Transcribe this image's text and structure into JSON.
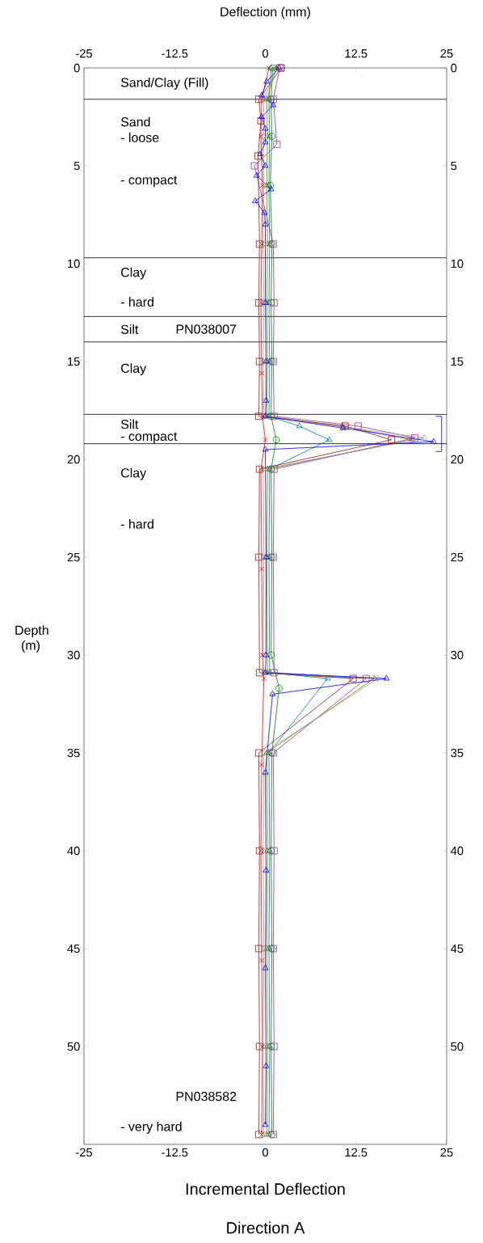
{
  "chart_data": {
    "type": "line",
    "title": "Incremental Deflection",
    "subtitle": "Direction  A",
    "x2label": "Deflection (mm)",
    "ylabel": "Depth (m)",
    "xlim": [
      -25,
      25
    ],
    "xticks": [
      -25,
      -12.5,
      0,
      12.5,
      25
    ],
    "x2lim": [
      -25,
      25
    ],
    "x2ticks": [
      -25,
      -12.5,
      0,
      12.5,
      25
    ],
    "ylim": [
      55,
      0
    ],
    "yticks": [
      0,
      5,
      10,
      15,
      20,
      25,
      30,
      35,
      40,
      45,
      50
    ],
    "y2lim": [
      55,
      0
    ],
    "y2ticks": [
      0,
      5,
      10,
      15,
      20,
      25,
      30,
      35,
      40,
      45,
      50
    ],
    "grid": false,
    "line_style": "solid",
    "ref_lines": [
      {
        "axis": "y",
        "value": 1.6,
        "label": null
      },
      {
        "axis": "y",
        "value": 9.7,
        "label": null
      },
      {
        "axis": "y",
        "value": 12.7,
        "label": null
      },
      {
        "axis": "y",
        "value": 14.0,
        "label": null
      },
      {
        "axis": "y",
        "value": 17.7,
        "label": null
      },
      {
        "axis": "y",
        "value": 19.2,
        "label": null
      }
    ],
    "annotations": [
      "Sand/Clay (Fill)",
      "Sand",
      "- loose",
      "- compact",
      "Clay",
      "- hard",
      "Silt",
      "PN038007",
      "Clay",
      "Silt",
      "- compact",
      "Clay",
      "- hard",
      "PN038582",
      "- very hard"
    ],
    "series": [
      {
        "color": "#ff0000",
        "marker": "cross",
        "x": [
          0.5,
          -0.5,
          -0.6,
          -0.4,
          -0.5,
          -0.6,
          -0.5,
          -0.4,
          0,
          -0.6,
          -0.5,
          -0.4,
          -0.2,
          -0.5,
          -0.6,
          -0.5,
          -0.4,
          -0.5
        ],
        "values": [
          0,
          1.6,
          3.5,
          6.0,
          9.0,
          12.0,
          15.6,
          17.8,
          19.0,
          20.5,
          25.6,
          30.0,
          31.2,
          35.6,
          40.0,
          45.6,
          50.0,
          54.5
        ]
      },
      {
        "color": "#008000",
        "marker": "circle",
        "x": [
          1.0,
          0.8,
          0.9,
          0.7,
          0.9,
          0.8,
          0.9,
          0.8,
          1.5,
          0.8,
          0.9,
          0.8,
          1.9,
          0.9,
          0.8,
          0.9,
          0.8,
          0.9
        ],
        "values": [
          0,
          1.6,
          3.5,
          6.0,
          9.0,
          12.0,
          15.0,
          17.8,
          19.0,
          20.5,
          25.0,
          30.0,
          31.7,
          35.0,
          40.0,
          45.0,
          50.0,
          54.5
        ]
      },
      {
        "color": "#008080",
        "marker": "triangle",
        "x": [
          0.8,
          0.5,
          0.6,
          0.5,
          0.6,
          0.5,
          0.6,
          0.5,
          4.7,
          8.8,
          0.6,
          0.5,
          0.6,
          8.6,
          0.5,
          0.6,
          0.5,
          0.6,
          0.5
        ],
        "values": [
          0,
          1.6,
          3.5,
          6.0,
          9.0,
          12.0,
          15.0,
          17.8,
          18.3,
          19.0,
          20.5,
          25.0,
          30.9,
          31.2,
          35.0,
          40.0,
          45.0,
          50.0,
          54.5
        ]
      },
      {
        "color": "#808000",
        "marker": "triangle",
        "x": [
          1.5,
          0.2,
          0.3,
          0.2,
          0.3,
          0.2,
          0.3,
          0.2,
          10.6,
          20.2,
          0.3,
          0.2,
          0.3,
          15.0,
          0.2,
          0.3,
          0.2,
          0.3,
          0.2
        ],
        "values": [
          0,
          1.6,
          3.5,
          6.0,
          9.0,
          12.0,
          15.0,
          17.8,
          18.3,
          19.0,
          20.5,
          25.0,
          30.9,
          31.2,
          35.0,
          40.0,
          45.0,
          50.0,
          54.5
        ]
      },
      {
        "color": "#993399",
        "marker": "square",
        "x": [
          2.0,
          1.1,
          1.6,
          -1.5,
          1.1,
          1.2,
          1.1,
          1.2,
          12.8,
          20.6,
          1.2,
          1.1,
          1.2,
          13.9,
          1.1,
          1.2,
          1.1,
          1.2,
          1.1
        ],
        "values": [
          0,
          1.6,
          3.9,
          5.0,
          9.0,
          12.0,
          15.0,
          17.8,
          18.3,
          18.9,
          20.5,
          25.0,
          30.9,
          31.2,
          35.0,
          40.0,
          45.0,
          50.0,
          54.5
        ]
      },
      {
        "color": "#8b1a1a",
        "marker": "square",
        "x": [
          2.2,
          -0.9,
          -0.6,
          -1.0,
          -0.8,
          -0.9,
          -0.8,
          -0.9,
          11.0,
          17.4,
          -0.8,
          -0.9,
          -0.8,
          12.1,
          -0.9,
          -0.8,
          -0.9,
          -0.8,
          -0.9
        ],
        "values": [
          0,
          1.6,
          2.7,
          4.5,
          9.0,
          12.0,
          15.0,
          17.8,
          18.3,
          19.0,
          20.5,
          25.0,
          30.9,
          31.2,
          35.0,
          40.0,
          45.0,
          50.0,
          54.5
        ]
      },
      {
        "color": "#999999",
        "marker": "diamond",
        "x": [
          1.6,
          -0.2,
          -0.3,
          -0.2,
          -0.3,
          -0.2,
          -0.3,
          -0.2,
          21.9,
          -0.3,
          -0.2,
          -0.3,
          15.5,
          -0.2,
          -0.3,
          -0.2,
          -0.3,
          -0.2
        ],
        "values": [
          0,
          1.6,
          3.5,
          6.0,
          9.0,
          12.0,
          15.0,
          17.8,
          18.9,
          20.5,
          25.0,
          30.9,
          31.2,
          35.0,
          40.0,
          45.0,
          50.0,
          54.5
        ]
      },
      {
        "color": "#0000ff",
        "marker": "triangle",
        "x": [
          1.9,
          0.2,
          -0.5,
          1.1,
          -0.5,
          0,
          0,
          -0.7,
          0,
          -1.2,
          0.8,
          -1.4,
          -0.1,
          0,
          0,
          0.1,
          0.1,
          0,
          10.7,
          23.2,
          0,
          0.1,
          0.1,
          0,
          16.7,
          1.0,
          0,
          0.1,
          0,
          0.1,
          0
        ],
        "values": [
          0,
          0.7,
          1.4,
          1.9,
          2.5,
          3.1,
          3.8,
          4.4,
          5.0,
          5.5,
          6.2,
          6.8,
          7.4,
          8.0,
          12.0,
          15.0,
          17.0,
          17.8,
          18.4,
          19.1,
          19.5,
          25.0,
          30.0,
          30.9,
          31.2,
          32.0,
          36.0,
          41.0,
          46.0,
          51.0,
          54.0
        ]
      }
    ]
  }
}
